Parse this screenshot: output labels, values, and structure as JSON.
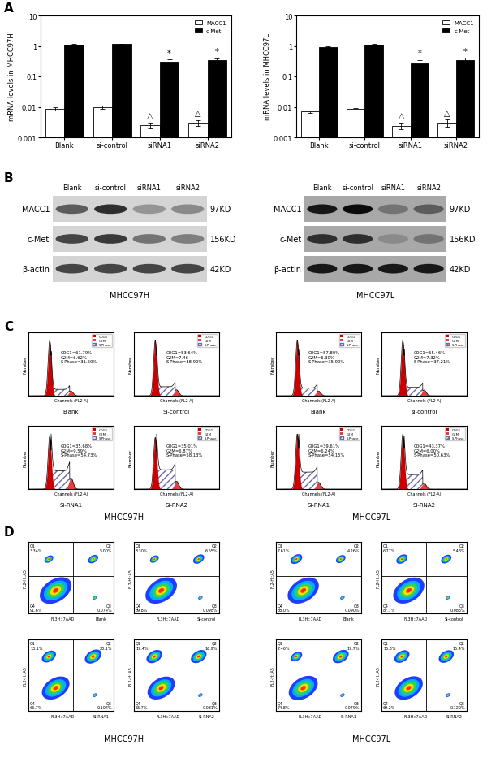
{
  "panel_labels": [
    "A",
    "B",
    "C",
    "D"
  ],
  "chart_data": [
    {
      "type": "bar",
      "ylabel": "mRNA levels in MHCC97H",
      "categories": [
        "Blank",
        "si-control",
        "siRNA1",
        "siRNA2"
      ],
      "series": [
        {
          "name": "MACC1",
          "color": "#ffffff",
          "values": [
            0.0085,
            0.0098,
            0.0025,
            0.003
          ],
          "errors": [
            0.001,
            0.001,
            0.0005,
            0.0007
          ]
        },
        {
          "name": "c-Met",
          "color": "#000000",
          "values": [
            1.1,
            1.15,
            0.3,
            0.35
          ],
          "errors": [
            0.08,
            0.05,
            0.06,
            0.04
          ]
        }
      ],
      "annotations": [
        {
          "series": "MACC1",
          "category": "siRNA1",
          "text": "△"
        },
        {
          "series": "MACC1",
          "category": "siRNA2",
          "text": "△"
        },
        {
          "series": "c-Met",
          "category": "siRNA1",
          "text": "*"
        },
        {
          "series": "c-Met",
          "category": "siRNA2",
          "text": "*"
        }
      ],
      "log": "y",
      "ylim": [
        0.001,
        10
      ],
      "yticks": [
        0.001,
        0.01,
        0.1,
        1,
        10
      ],
      "legend": "upper right"
    },
    {
      "type": "bar",
      "ylabel": "mRNA levels in MHCC97L",
      "categories": [
        "Blank",
        "si-control",
        "siRNA1",
        "siRNA2"
      ],
      "series": [
        {
          "name": "MACC1",
          "color": "#ffffff",
          "values": [
            0.007,
            0.0085,
            0.0024,
            0.003
          ],
          "errors": [
            0.0008,
            0.0007,
            0.0006,
            0.0008
          ]
        },
        {
          "name": "c-Met",
          "color": "#000000",
          "values": [
            0.9,
            1.1,
            0.26,
            0.35
          ],
          "errors": [
            0.07,
            0.05,
            0.09,
            0.05
          ]
        }
      ],
      "annotations": [
        {
          "series": "MACC1",
          "category": "siRNA1",
          "text": "△"
        },
        {
          "series": "MACC1",
          "category": "siRNA2",
          "text": "△"
        },
        {
          "series": "c-Met",
          "category": "siRNA1",
          "text": "*"
        },
        {
          "series": "c-Met",
          "category": "siRNA2",
          "text": "*"
        }
      ],
      "log": "y",
      "ylim": [
        0.001,
        10
      ],
      "yticks": [
        0.001,
        0.01,
        0.1,
        1,
        10
      ],
      "legend": "upper right"
    }
  ],
  "western_blots": {
    "lanes": [
      "Blank",
      "si-control",
      "siRNA1",
      "siRNA2"
    ],
    "panels": [
      {
        "cell_line": "MHCC97H",
        "rows": [
          {
            "protein": "MACC1",
            "size": "97KD",
            "band_intensity": [
              0.6,
              0.8,
              0.35,
              0.4
            ]
          },
          {
            "protein": "c-Met",
            "size": "156KD",
            "band_intensity": [
              0.7,
              0.75,
              0.5,
              0.45
            ]
          },
          {
            "protein": "β-actin",
            "size": "42KD",
            "band_intensity": [
              0.7,
              0.7,
              0.7,
              0.7
            ]
          }
        ]
      },
      {
        "cell_line": "MHCC97L",
        "rows": [
          {
            "protein": "MACC1",
            "size": "97KD",
            "band_intensity": [
              0.9,
              0.95,
              0.5,
              0.6
            ]
          },
          {
            "protein": "c-Met",
            "size": "156KD",
            "band_intensity": [
              0.8,
              0.8,
              0.4,
              0.5
            ]
          },
          {
            "protein": "β-actin",
            "size": "42KD",
            "band_intensity": [
              0.9,
              0.9,
              0.9,
              0.9
            ]
          }
        ]
      }
    ]
  },
  "cell_cycle": {
    "xlabel": "Channels (FL2-A)",
    "ylabel": "Number",
    "legend": [
      {
        "name": "G0G1",
        "color": "#cc0000"
      },
      {
        "name": "G2M",
        "color": "#e04040"
      },
      {
        "name": "S-Phase",
        "color": "#6a6aa8"
      }
    ],
    "panels": [
      {
        "cell_line": "MHCC97H",
        "samples": [
          {
            "name": "Blank",
            "phases": [
              {
                "value": 61.79,
                "label": "G0G1=61.79%"
              },
              {
                "value": 6.62,
                "label": "G2M=6.62%"
              },
              {
                "value": 31.6,
                "label": "S-Phase=31.60%"
              }
            ]
          },
          {
            "name": "Si-control",
            "phases": [
              {
                "value": 53.64,
                "label": "G0G1=53.64%"
              },
              {
                "value": 7.46,
                "label": "G2M=7.46"
              },
              {
                "value": 38.9,
                "label": "S-Phase=38.90%"
              }
            ]
          },
          {
            "name": "Si-RNA1",
            "phases": [
              {
                "value": 35.68,
                "label": "G0G1=35.68%"
              },
              {
                "value": 9.59,
                "label": "G2M=9.59%"
              },
              {
                "value": 54.73,
                "label": "S-Phase=54.73%"
              }
            ]
          },
          {
            "name": "Si-RNA2",
            "phases": [
              {
                "value": 35.01,
                "label": "G0G1=35.01%"
              },
              {
                "value": 6.87,
                "label": "G2M=6.87%"
              },
              {
                "value": 58.13,
                "label": "S-Phase=58.13%"
              }
            ]
          }
        ]
      },
      {
        "cell_line": "MHCC97L",
        "samples": [
          {
            "name": "Blank",
            "phases": [
              {
                "value": 57.8,
                "label": "G0G1=57.80%"
              },
              {
                "value": 6.3,
                "label": "G2M=6.30%"
              },
              {
                "value": 35.9,
                "label": "S-Phase=35.90%"
              }
            ]
          },
          {
            "name": "si-control",
            "phases": [
              {
                "value": 55.46,
                "label": "G0G1=55.46%"
              },
              {
                "value": 7.32,
                "label": "G2M=7.32%"
              },
              {
                "value": 37.21,
                "label": "S-Phase=37.21%"
              }
            ]
          },
          {
            "name": "Si-RNA1",
            "phases": [
              {
                "value": 39.61,
                "label": "G0G1=39.61%"
              },
              {
                "value": 6.24,
                "label": "G2M=6.24%"
              },
              {
                "value": 54.15,
                "label": "S-Phase=54.15%"
              }
            ]
          },
          {
            "name": "Si-RNA2",
            "phases": [
              {
                "value": 43.37,
                "label": "G0G1=43.37%"
              },
              {
                "value": 6.0,
                "label": "G2M=6.00%"
              },
              {
                "value": 50.63,
                "label": "S-Phase=50.63%"
              }
            ]
          }
        ]
      }
    ]
  },
  "apoptosis": {
    "xlabel": "FL3H::7AAD",
    "ylabel": "FL2-H::A5",
    "panels": [
      {
        "cell_line": "MHCC97H",
        "samples": [
          {
            "name": "Blank",
            "quadrants": [
              {
                "name": "Q1",
                "value": 3.34,
                "label": "3.34%"
              },
              {
                "name": "Q2",
                "value": 5.0,
                "label": "5.00%"
              },
              {
                "name": "Q3",
                "value": 0.074,
                "label": "0.074%"
              },
              {
                "name": "Q4",
                "value": 91.6,
                "label": "91.6%"
              }
            ]
          },
          {
            "name": "Si-control",
            "quadrants": [
              {
                "name": "Q1",
                "value": 3.3,
                "label": "3.30%"
              },
              {
                "name": "Q2",
                "value": 6.65,
                "label": "6.65%"
              },
              {
                "name": "Q3",
                "value": 0.098,
                "label": "0.098%"
              },
              {
                "name": "Q4",
                "value": 89.8,
                "label": "89.8%"
              }
            ]
          },
          {
            "name": "Si-RNA1",
            "quadrants": [
              {
                "name": "Q1",
                "value": 13.1,
                "label": "13.1%"
              },
              {
                "name": "Q2",
                "value": 20.1,
                "label": "20.1%"
              },
              {
                "name": "Q3",
                "value": 0.104,
                "label": "0.104%"
              },
              {
                "name": "Q4",
                "value": 66.7,
                "label": "66.7%"
              }
            ]
          },
          {
            "name": "Si-RNA2",
            "quadrants": [
              {
                "name": "Q1",
                "value": 17.4,
                "label": "17.4%"
              },
              {
                "name": "Q2",
                "value": 16.9,
                "label": "16.9%"
              },
              {
                "name": "Q3",
                "value": 0.081,
                "label": "0.081%"
              },
              {
                "name": "Q4",
                "value": 65.7,
                "label": "65.7%"
              }
            ]
          }
        ]
      },
      {
        "cell_line": "MHCC97L",
        "samples": [
          {
            "name": "Blank",
            "quadrants": [
              {
                "name": "Q1",
                "value": 7.61,
                "label": "7.61%"
              },
              {
                "name": "Q2",
                "value": 4.26,
                "label": "4.26%"
              },
              {
                "name": "Q3",
                "value": 0.09,
                "label": "0.090%"
              },
              {
                "name": "Q4",
                "value": 88.0,
                "label": "88.0%"
              }
            ]
          },
          {
            "name": "Si-control",
            "quadrants": [
              {
                "name": "Q1",
                "value": 6.77,
                "label": "6.77%"
              },
              {
                "name": "Q2",
                "value": 5.48,
                "label": "5.48%"
              },
              {
                "name": "Q3",
                "value": 0.085,
                "label": "0.085%"
              },
              {
                "name": "Q4",
                "value": 87.7,
                "label": "87.7%"
              }
            ]
          },
          {
            "name": "Si-RNA1",
            "quadrants": [
              {
                "name": "Q1",
                "value": 7.46,
                "label": "7.46%"
              },
              {
                "name": "Q2",
                "value": 17.7,
                "label": "17.7%"
              },
              {
                "name": "Q3",
                "value": 0.079,
                "label": "0.079%"
              },
              {
                "name": "Q4",
                "value": 74.8,
                "label": "74.8%"
              }
            ]
          },
          {
            "name": "Si-RNA2",
            "quadrants": [
              {
                "name": "Q1",
                "value": 15.3,
                "label": "15.3%"
              },
              {
                "name": "Q2",
                "value": 15.4,
                "label": "15.4%"
              },
              {
                "name": "Q3",
                "value": 0.12,
                "label": "0.120%"
              },
              {
                "name": "Q4",
                "value": 69.2,
                "label": "69.2%"
              }
            ]
          }
        ]
      }
    ]
  }
}
